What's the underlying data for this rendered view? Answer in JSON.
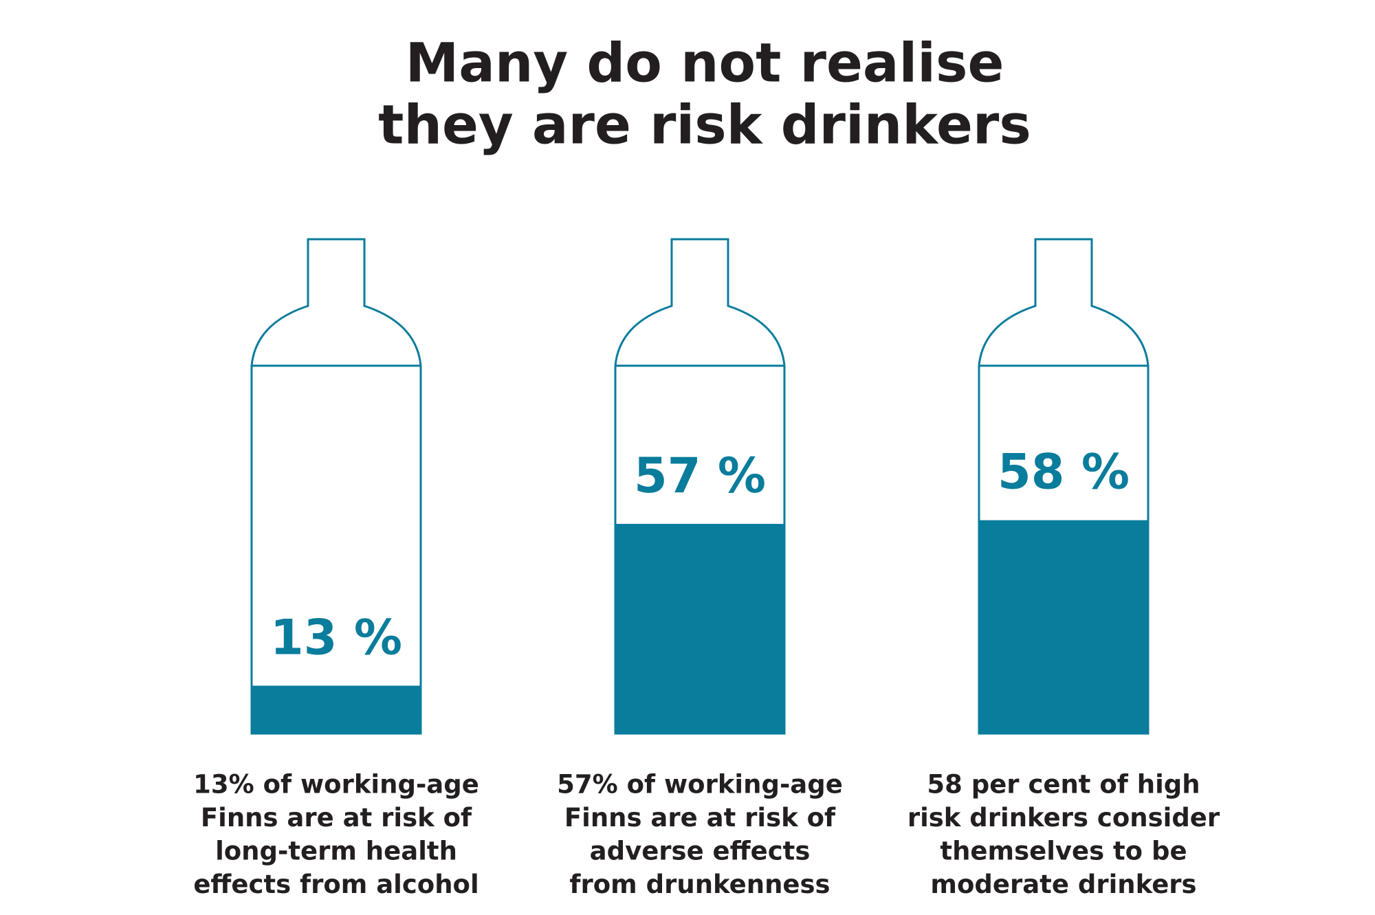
{
  "chart_data": {
    "type": "bottle",
    "title": [
      "Many do not realise",
      "they are risk drinkers"
    ],
    "values": [
      13,
      57,
      58
    ],
    "value_labels": [
      "13 %",
      "57 %",
      "58 %"
    ],
    "descriptions": [
      [
        "13% of working-age",
        "Finns are at risk of",
        "long-term health",
        "effects from alcohol"
      ],
      [
        "57% of working-age",
        "Finns are at risk of",
        "adverse effects",
        "from drunkenness"
      ],
      [
        "58 per cent of high",
        "risk drinkers consider",
        "themselves to be",
        "moderate drinkers"
      ]
    ],
    "color": "#0a7c9c",
    "ylim": [
      0,
      100
    ]
  }
}
